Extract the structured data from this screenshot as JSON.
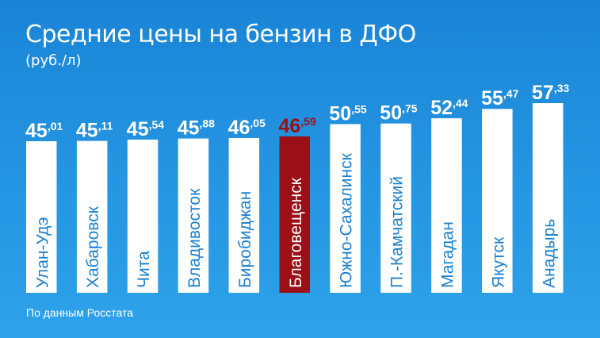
{
  "title": "Средние цены на бензин в ДФО",
  "subtitle": "(руб./л)",
  "source": "По данным Росстата",
  "colors": {
    "background": "#2090dc",
    "bar": "#ffffff",
    "highlight_bar": "#9a1016",
    "bar_label": "#1a7fd0",
    "highlight_label": "#ffffff",
    "value_text": "#ffffff",
    "highlight_value_text": "#9a1016"
  },
  "chart_data": {
    "type": "bar",
    "title": "Средние цены на бензин в ДФО",
    "subtitle": "(руб./л)",
    "categories": [
      "Улан-Удэ",
      "Хабаровск",
      "Чита",
      "Владивосток",
      "Биробиджан",
      "Благовещенск",
      "Южно-Сахалинск",
      "П.-Камчатский",
      "Магадан",
      "Якутск",
      "Анадырь"
    ],
    "values": [
      45.01,
      45.11,
      45.54,
      45.88,
      46.05,
      46.59,
      50.55,
      50.75,
      52.44,
      55.47,
      57.33
    ],
    "value_labels": [
      {
        "int": "45",
        "frac": ",01"
      },
      {
        "int": "45",
        "frac": ",11"
      },
      {
        "int": "45",
        "frac": ",54"
      },
      {
        "int": "45",
        "frac": ",88"
      },
      {
        "int": "46",
        "frac": ",05"
      },
      {
        "int": "46",
        "frac": ",59"
      },
      {
        "int": "50",
        "frac": ",55"
      },
      {
        "int": "50",
        "frac": ",75"
      },
      {
        "int": "52",
        "frac": ",44"
      },
      {
        "int": "55",
        "frac": ",47"
      },
      {
        "int": "57",
        "frac": ",33"
      }
    ],
    "highlight": "Благовещенск",
    "orientation": "vertical",
    "category_label_position": "inside bar, rotated"
  }
}
